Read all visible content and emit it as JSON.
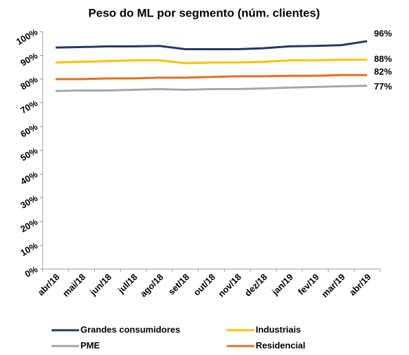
{
  "chart_data": {
    "type": "line",
    "title": "Peso do ML por segmento (núm. clientes)",
    "categories": [
      "abr/18",
      "mai/18",
      "jun/18",
      "jul/18",
      "ago/18",
      "set/18",
      "out/18",
      "nov/18",
      "dez/18",
      "jan/19",
      "fev/19",
      "mar/19",
      "abr/19"
    ],
    "series": [
      {
        "name": "Grandes consumidores",
        "color": "#203864",
        "values": [
          93.3,
          93.5,
          93.8,
          93.8,
          94,
          92.6,
          92.6,
          92.6,
          93,
          93.8,
          94,
          94.3,
          96
        ],
        "value_labels": [
          null,
          null,
          null,
          null,
          null,
          null,
          null,
          null,
          null,
          null,
          null,
          null,
          "96%"
        ]
      },
      {
        "name": "Industriais",
        "color": "#ffc000",
        "values": [
          87,
          87.3,
          87.6,
          87.9,
          87.9,
          86.7,
          87,
          87,
          87.3,
          87.9,
          87.9,
          88.2,
          88.2
        ],
        "value_labels": [
          null,
          null,
          null,
          null,
          null,
          null,
          null,
          null,
          null,
          null,
          null,
          null,
          "88%"
        ]
      },
      {
        "name": "PME",
        "color": "#a6a6a6",
        "values": [
          75,
          75.2,
          75.2,
          75.5,
          75.8,
          75.5,
          75.8,
          75.8,
          76.1,
          76.4,
          76.7,
          77,
          77.2
        ],
        "value_labels": [
          null,
          null,
          null,
          null,
          null,
          null,
          null,
          null,
          null,
          null,
          null,
          null,
          "77%"
        ]
      },
      {
        "name": "Residencial",
        "color": "#e46c1f",
        "values": [
          80,
          80,
          80.3,
          80.3,
          80.6,
          80.6,
          80.9,
          81.2,
          81.2,
          81.4,
          81.4,
          81.7,
          81.7
        ],
        "value_labels": [
          null,
          null,
          null,
          null,
          null,
          null,
          null,
          null,
          null,
          null,
          null,
          null,
          "82%"
        ]
      }
    ],
    "ylim": [
      0,
      100
    ],
    "yticks": [
      {
        "value": 0,
        "label": "0%"
      },
      {
        "value": 10,
        "label": "10%"
      },
      {
        "value": 20,
        "label": "20%"
      },
      {
        "value": 30,
        "label": "30%"
      },
      {
        "value": 40,
        "label": "40%"
      },
      {
        "value": 50,
        "label": "50%"
      },
      {
        "value": 60,
        "label": "60%"
      },
      {
        "value": 70,
        "label": "70%"
      },
      {
        "value": 80,
        "label": "80%"
      },
      {
        "value": 90,
        "label": "90%"
      },
      {
        "value": 100,
        "label": "100%"
      }
    ],
    "grid": false
  }
}
